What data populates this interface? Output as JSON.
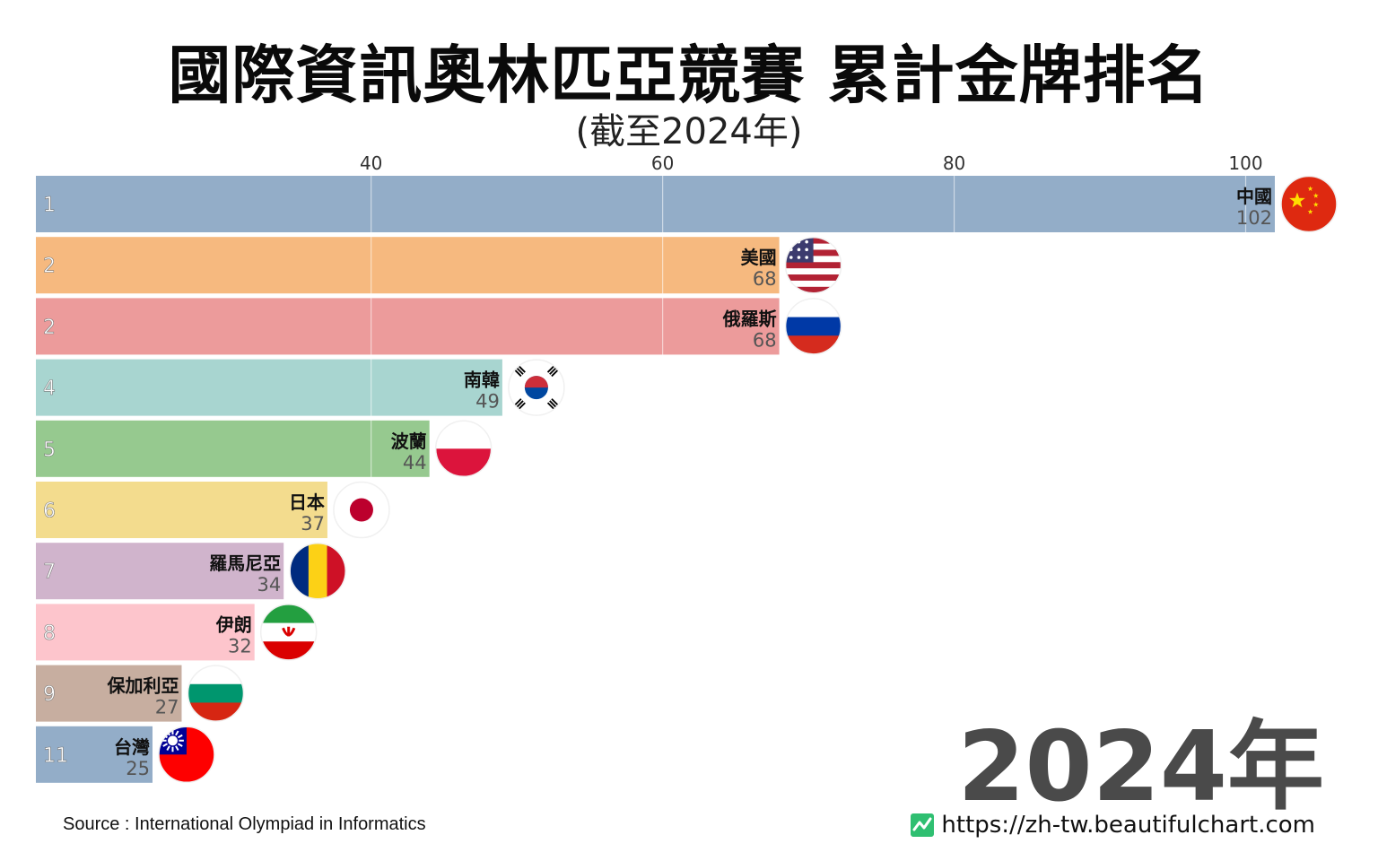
{
  "title": "國際資訊奧林匹亞競賽 累計金牌排名",
  "subtitle": "(截至2024年)",
  "year_label": "2024年",
  "source": "Source : International Olympiad in Informatics",
  "website": "https://zh-tw.beautifulchart.com",
  "colors": {
    "grid": "#ffffff",
    "tick_text": "#333333",
    "rank_text": "#ffffff"
  },
  "chart_data": {
    "type": "bar",
    "orientation": "horizontal",
    "xlim": [
      17,
      102
    ],
    "x_ticks": [
      40,
      60,
      80,
      100
    ],
    "grid": true,
    "bars": [
      {
        "rank": "1",
        "name": "中國",
        "value": 102,
        "color": "#93adc8",
        "flag": "china-flag"
      },
      {
        "rank": "2",
        "name": "美國",
        "value": 68,
        "color": "#f6b97f",
        "flag": "usa-flag"
      },
      {
        "rank": "2",
        "name": "俄羅斯",
        "value": 68,
        "color": "#ec9b9b",
        "flag": "russia-flag"
      },
      {
        "rank": "4",
        "name": "南韓",
        "value": 49,
        "color": "#a8d5d0",
        "flag": "south-korea-flag"
      },
      {
        "rank": "5",
        "name": "波蘭",
        "value": 44,
        "color": "#96c98f",
        "flag": "poland-flag"
      },
      {
        "rank": "6",
        "name": "日本",
        "value": 37,
        "color": "#f3dc8e",
        "flag": "japan-flag"
      },
      {
        "rank": "7",
        "name": "羅馬尼亞",
        "value": 34,
        "color": "#d0b4cc",
        "flag": "romania-flag"
      },
      {
        "rank": "8",
        "name": "伊朗",
        "value": 32,
        "color": "#fdc5cc",
        "flag": "iran-flag"
      },
      {
        "rank": "9",
        "name": "保加利亞",
        "value": 27,
        "color": "#c7aea0",
        "flag": "bulgaria-flag"
      },
      {
        "rank": "11",
        "name": "台灣",
        "value": 25,
        "color": "#93adc8",
        "flag": "taiwan-flag"
      }
    ]
  }
}
